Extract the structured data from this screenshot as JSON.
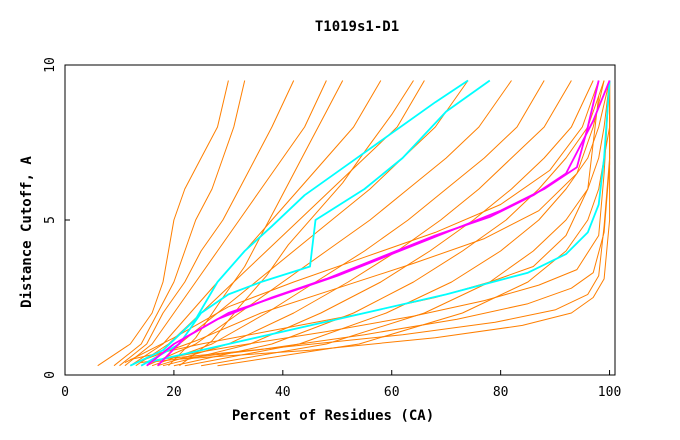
{
  "chart_data": {
    "type": "line",
    "title": "T1019s1-D1",
    "xlabel": "Percent of Residues (CA)",
    "ylabel": "Distance Cutoff, A",
    "xlim": [
      0,
      101
    ],
    "ylim": [
      0,
      10
    ],
    "xticks": [
      "0",
      "20",
      "40",
      "60",
      "80",
      "100"
    ],
    "yticks": [
      "0",
      "5",
      "10"
    ],
    "colors": {
      "background": "#ffffff",
      "axis": "#000000",
      "orange": "#ff7f00",
      "cyan": "#00ffff",
      "magenta": "#ff00ff"
    },
    "series": [
      {
        "name": "orange-1",
        "color": "#ff7f00",
        "x": [
          6,
          12,
          16,
          18,
          19,
          20,
          22,
          25,
          28,
          30
        ],
        "y": [
          0.3,
          1.0,
          2.0,
          3.0,
          4.0,
          5.0,
          6.0,
          7.0,
          8.0,
          9.5
        ]
      },
      {
        "name": "orange-2",
        "color": "#ff7f00",
        "x": [
          9,
          14,
          17,
          20,
          22,
          24,
          27,
          29,
          31,
          33
        ],
        "y": [
          0.3,
          1.0,
          2.0,
          3.0,
          4.0,
          5.0,
          6.0,
          7.0,
          8.0,
          9.5
        ]
      },
      {
        "name": "orange-3",
        "color": "#ff7f00",
        "x": [
          10,
          15,
          18,
          22,
          25,
          29,
          32,
          35,
          38,
          42
        ],
        "y": [
          0.3,
          1.0,
          2.0,
          3.0,
          4.0,
          5.0,
          6.0,
          7.0,
          8.0,
          9.5
        ]
      },
      {
        "name": "orange-4",
        "color": "#ff7f00",
        "x": [
          11,
          16,
          20,
          24,
          28,
          32,
          36,
          40,
          44,
          48
        ],
        "y": [
          0.3,
          1.0,
          2.0,
          3.0,
          4.0,
          5.0,
          6.0,
          7.0,
          8.0,
          9.5
        ]
      },
      {
        "name": "orange-5",
        "color": "#ff7f00",
        "x": [
          12,
          18,
          23,
          28,
          33,
          38,
          43,
          48,
          53,
          58
        ],
        "y": [
          0.3,
          1.0,
          2.0,
          3.0,
          4.0,
          5.0,
          6.0,
          7.0,
          8.0,
          9.5
        ]
      },
      {
        "name": "orange-6",
        "color": "#ff7f00",
        "x": [
          13,
          19,
          25,
          31,
          37,
          43,
          49,
          55,
          61,
          66
        ],
        "y": [
          0.3,
          1.0,
          2.0,
          3.0,
          4.0,
          5.0,
          6.0,
          7.0,
          8.0,
          9.5
        ]
      },
      {
        "name": "orange-7",
        "color": "#ff7f00",
        "x": [
          14,
          21,
          28,
          35,
          42,
          49,
          56,
          62,
          68,
          74
        ],
        "y": [
          0.3,
          1.0,
          2.0,
          3.0,
          4.0,
          5.0,
          6.0,
          7.0,
          8.0,
          9.5
        ]
      },
      {
        "name": "orange-8",
        "color": "#ff7f00",
        "x": [
          15,
          24,
          32,
          40,
          48,
          56,
          63,
          70,
          76,
          82
        ],
        "y": [
          0.3,
          1.0,
          2.0,
          3.0,
          4.0,
          5.0,
          6.0,
          7.0,
          8.0,
          9.5
        ]
      },
      {
        "name": "orange-9",
        "color": "#ff7f00",
        "x": [
          16,
          27,
          37,
          46,
          55,
          63,
          70,
          77,
          83,
          88
        ],
        "y": [
          0.3,
          1.0,
          2.0,
          3.0,
          4.0,
          5.0,
          6.0,
          7.0,
          8.0,
          9.5
        ]
      },
      {
        "name": "orange-10",
        "color": "#ff7f00",
        "x": [
          17,
          30,
          42,
          52,
          61,
          69,
          76,
          82,
          88,
          93
        ],
        "y": [
          0.3,
          1.0,
          2.0,
          3.0,
          4.0,
          5.0,
          6.0,
          7.0,
          8.0,
          9.5
        ]
      },
      {
        "name": "orange-11",
        "color": "#ff7f00",
        "x": [
          18,
          34,
          47,
          58,
          67,
          75,
          82,
          88,
          93,
          97
        ],
        "y": [
          0.3,
          1.0,
          2.0,
          3.0,
          4.0,
          5.0,
          6.0,
          7.0,
          8.0,
          9.5
        ]
      },
      {
        "name": "orange-12",
        "color": "#ff7f00",
        "x": [
          20,
          38,
          53,
          64,
          73,
          81,
          87,
          92,
          96,
          99
        ],
        "y": [
          0.3,
          1.0,
          2.0,
          3.0,
          4.0,
          5.0,
          6.0,
          7.0,
          8.0,
          9.5
        ]
      },
      {
        "name": "orange-13",
        "color": "#ff7f00",
        "x": [
          22,
          43,
          59,
          71,
          80,
          87,
          92,
          96,
          98,
          100
        ],
        "y": [
          0.3,
          1.0,
          2.0,
          3.0,
          4.0,
          5.0,
          6.0,
          7.0,
          8.0,
          9.5
        ]
      },
      {
        "name": "orange-14",
        "color": "#ff7f00",
        "x": [
          25,
          48,
          66,
          78,
          86,
          92,
          96,
          98,
          99,
          100
        ],
        "y": [
          0.3,
          1.0,
          2.0,
          3.0,
          4.0,
          5.0,
          6.0,
          7.0,
          8.0,
          9.5
        ]
      },
      {
        "name": "orange-15",
        "color": "#ff7f00",
        "x": [
          28,
          54,
          73,
          85,
          92,
          96,
          98,
          99,
          100,
          100
        ],
        "y": [
          0.3,
          1.0,
          2.0,
          3.0,
          4.0,
          5.0,
          6.0,
          7.0,
          8.0,
          9.5
        ]
      },
      {
        "name": "orange-16",
        "color": "#ff7f00",
        "x": [
          12,
          25,
          40,
          55,
          68,
          78,
          86,
          92,
          96,
          98
        ],
        "y": [
          0.5,
          1.0,
          1.5,
          2.0,
          2.5,
          3.0,
          3.5,
          4.5,
          6.0,
          9.0
        ]
      },
      {
        "name": "orange-17",
        "color": "#ff7f00",
        "x": [
          14,
          30,
          48,
          64,
          77,
          87,
          94,
          98,
          99,
          100
        ],
        "y": [
          0.4,
          0.9,
          1.4,
          1.9,
          2.4,
          2.9,
          3.4,
          4.5,
          6.5,
          9.5
        ]
      },
      {
        "name": "orange-18",
        "color": "#ff7f00",
        "x": [
          15,
          35,
          55,
          72,
          85,
          93,
          97,
          99,
          100,
          100
        ],
        "y": [
          0.4,
          0.8,
          1.3,
          1.8,
          2.3,
          2.8,
          3.3,
          4.6,
          6.8,
          9.5
        ]
      },
      {
        "name": "orange-19",
        "color": "#ff7f00",
        "x": [
          17,
          40,
          62,
          79,
          90,
          96,
          98,
          99,
          100,
          100
        ],
        "y": [
          0.5,
          0.9,
          1.3,
          1.7,
          2.1,
          2.6,
          3.2,
          4.8,
          7.0,
          9.5
        ]
      },
      {
        "name": "orange-20",
        "color": "#ff7f00",
        "x": [
          20,
          45,
          68,
          84,
          93,
          97,
          99,
          100,
          100,
          100
        ],
        "y": [
          0.5,
          0.8,
          1.2,
          1.6,
          2.0,
          2.5,
          3.1,
          5.0,
          7.2,
          9.5
        ]
      },
      {
        "name": "orange-21",
        "color": "#ff7f00",
        "x": [
          11,
          20,
          30,
          42,
          55,
          68,
          80,
          89,
          95,
          98
        ],
        "y": [
          0.4,
          1.2,
          2.2,
          3.0,
          3.8,
          4.6,
          5.5,
          6.6,
          8.0,
          9.5
        ]
      },
      {
        "name": "orange-22",
        "color": "#ff7f00",
        "x": [
          13,
          24,
          36,
          50,
          64,
          77,
          87,
          94,
          97,
          99
        ],
        "y": [
          0.4,
          1.1,
          2.0,
          2.8,
          3.6,
          4.4,
          5.3,
          6.5,
          8.0,
          9.5
        ]
      },
      {
        "name": "orange-23",
        "color": "#ff7f00",
        "x": [
          19,
          24,
          29,
          33,
          36,
          39,
          42,
          45,
          48,
          51
        ],
        "y": [
          0.3,
          1.2,
          2.5,
          3.5,
          4.5,
          5.5,
          6.5,
          7.5,
          8.5,
          9.5
        ]
      },
      {
        "name": "orange-24",
        "color": "#ff7f00",
        "x": [
          21,
          27,
          32,
          37,
          41,
          46,
          51,
          55,
          60,
          64
        ],
        "y": [
          0.3,
          1.1,
          2.2,
          3.2,
          4.2,
          5.2,
          6.2,
          7.2,
          8.4,
          9.5
        ]
      },
      {
        "name": "cyan-1",
        "color": "#00ffff",
        "x": [
          12,
          18,
          24,
          28,
          33,
          38,
          44,
          52,
          60,
          68,
          74
        ],
        "y": [
          0.3,
          0.8,
          1.8,
          3.0,
          4.0,
          4.8,
          5.8,
          6.8,
          7.8,
          8.8,
          9.5
        ]
      },
      {
        "name": "cyan-2",
        "color": "#00ffff",
        "x": [
          14,
          21,
          25,
          30,
          36,
          45,
          46,
          55,
          62,
          70,
          78
        ],
        "y": [
          0.3,
          1.0,
          2.0,
          2.6,
          3.0,
          3.5,
          5.0,
          6.0,
          7.0,
          8.5,
          9.5
        ]
      },
      {
        "name": "cyan-3",
        "color": "#00ffff",
        "x": [
          15,
          30,
          50,
          70,
          85,
          92,
          96,
          98,
          99,
          100
        ],
        "y": [
          0.4,
          1.0,
          1.8,
          2.6,
          3.3,
          3.9,
          4.6,
          5.5,
          7.0,
          9.5
        ]
      },
      {
        "name": "magenta-1",
        "color": "#ff00ff",
        "x": [
          17,
          22,
          30,
          40,
          50,
          60,
          70,
          80,
          88,
          94,
          96,
          98
        ],
        "y": [
          0.3,
          1.2,
          2.0,
          2.6,
          3.2,
          3.9,
          4.6,
          5.3,
          6.0,
          6.7,
          8.0,
          9.5
        ]
      },
      {
        "name": "magenta-2",
        "color": "#ff00ff",
        "x": [
          15,
          20,
          28,
          38,
          48,
          58,
          68,
          78,
          86,
          92,
          97,
          100
        ],
        "y": [
          0.3,
          1.0,
          1.8,
          2.5,
          3.1,
          3.8,
          4.5,
          5.1,
          5.8,
          6.5,
          8.2,
          9.5
        ]
      }
    ]
  }
}
